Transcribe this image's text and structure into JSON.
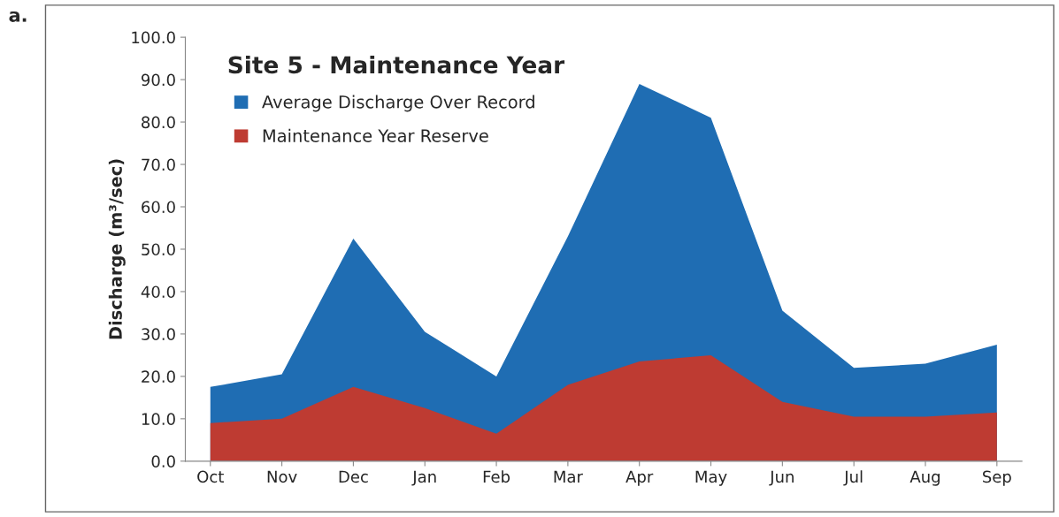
{
  "chart_data": {
    "type": "area",
    "title": "Site 5 - Maintenance Year",
    "ylabel": "Discharge (m³/sec)",
    "annotations": [
      "a."
    ],
    "categories": [
      "Oct",
      "Nov",
      "Dec",
      "Jan",
      "Feb",
      "Mar",
      "Apr",
      "May",
      "Jun",
      "Jul",
      "Aug",
      "Sep"
    ],
    "series": [
      {
        "name": "Average Discharge Over Record",
        "color": "#1f6db3",
        "values": [
          17.5,
          20.5,
          52.5,
          30.5,
          20,
          53,
          89,
          81,
          35.5,
          22,
          23,
          27.5
        ]
      },
      {
        "name": "Maintenance Year Reserve",
        "color": "#be3b32",
        "values": [
          9,
          10,
          17.5,
          12.5,
          6.5,
          18,
          23.5,
          25,
          14,
          10.5,
          10.5,
          11.5
        ]
      }
    ],
    "ylim": [
      0,
      100
    ],
    "yticks": [
      {
        "value": 0,
        "label": "0.0"
      },
      {
        "value": 10,
        "label": "10.0"
      },
      {
        "value": 20,
        "label": "20.0"
      },
      {
        "value": 30,
        "label": "30.0"
      },
      {
        "value": 40,
        "label": "40.0"
      },
      {
        "value": 50,
        "label": "50.0"
      },
      {
        "value": 60,
        "label": "60.0"
      },
      {
        "value": 70,
        "label": "70.0"
      },
      {
        "value": 80,
        "label": "80.0"
      },
      {
        "value": 90,
        "label": "90.0"
      },
      {
        "value": 100,
        "label": "100.0"
      }
    ],
    "grid": false,
    "legend": "top left"
  }
}
